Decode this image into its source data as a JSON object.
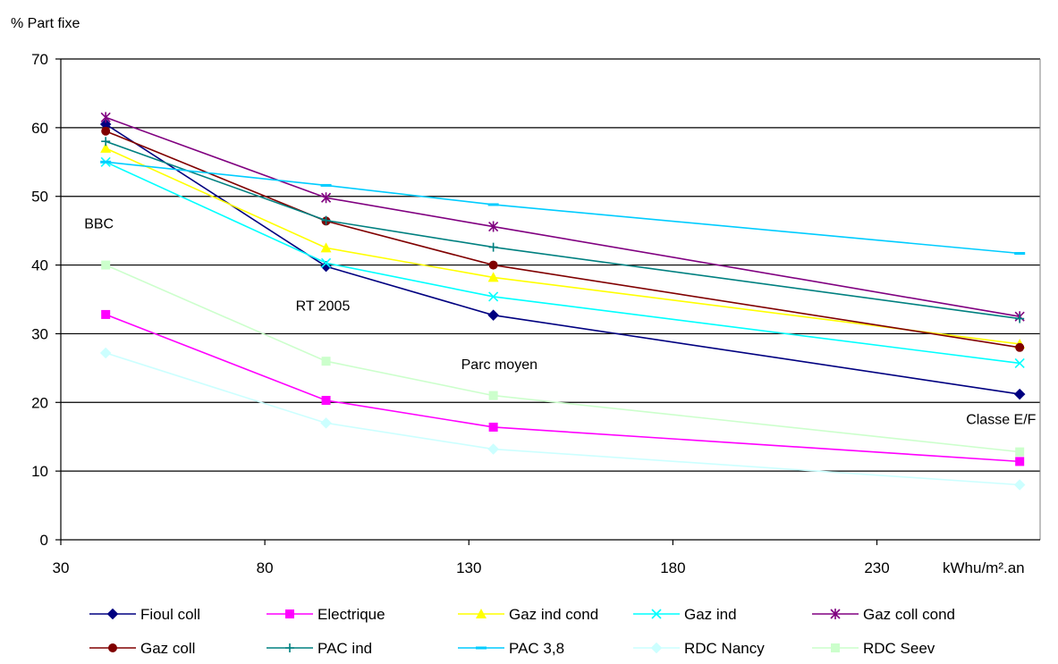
{
  "chart_data": {
    "type": "line",
    "title": "",
    "ylabel": "% Part fixe",
    "xlabel": "kWhu/m².an",
    "xlim": [
      30,
      270
    ],
    "ylim": [
      0,
      70
    ],
    "xticks": [
      30,
      80,
      130,
      180,
      230
    ],
    "yticks": [
      0,
      10,
      20,
      30,
      40,
      50,
      60,
      70
    ],
    "grid": "horizontal",
    "legend_position": "bottom",
    "x": [
      41,
      95,
      136,
      265
    ],
    "annotations": [
      {
        "text": "BBC",
        "x": 41,
        "y": 46
      },
      {
        "text": "RT 2005",
        "x": 95,
        "y": 34
      },
      {
        "text": "Parc moyen",
        "x": 136,
        "y": 25.5
      },
      {
        "text": "Classe E/F",
        "x": 265,
        "y": 17.5
      }
    ],
    "series": [
      {
        "name": "Fioul coll",
        "color": "#000080",
        "marker": "diamond",
        "values": [
          60.5,
          39.8,
          32.7,
          21.2
        ]
      },
      {
        "name": "Electrique",
        "color": "#ff00ff",
        "marker": "square",
        "values": [
          32.8,
          20.3,
          16.4,
          11.4
        ]
      },
      {
        "name": "Gaz ind cond",
        "color": "#ffff00",
        "marker": "triangle",
        "values": [
          57.0,
          42.5,
          38.2,
          28.5
        ]
      },
      {
        "name": "Gaz ind",
        "color": "#00ffff",
        "marker": "x",
        "values": [
          55.0,
          40.3,
          35.4,
          25.7
        ]
      },
      {
        "name": "Gaz coll cond",
        "color": "#800080",
        "marker": "star",
        "values": [
          61.5,
          49.8,
          45.6,
          32.5
        ]
      },
      {
        "name": "Gaz coll",
        "color": "#800000",
        "marker": "circle",
        "values": [
          59.5,
          46.4,
          40.0,
          28.0
        ]
      },
      {
        "name": "PAC ind",
        "color": "#008080",
        "marker": "plus",
        "values": [
          58.0,
          46.5,
          42.6,
          32.2
        ]
      },
      {
        "name": "PAC 3,8",
        "color": "#00ccff",
        "marker": "dash",
        "values": [
          55.0,
          51.6,
          48.8,
          41.7
        ]
      },
      {
        "name": "RDC Nancy",
        "color": "#ccffff",
        "marker": "diamond",
        "values": [
          27.2,
          17.0,
          13.2,
          8.0
        ]
      },
      {
        "name": "RDC Seev",
        "color": "#ccffcc",
        "marker": "square",
        "values": [
          40.0,
          26.0,
          21.0,
          12.8
        ]
      }
    ]
  }
}
